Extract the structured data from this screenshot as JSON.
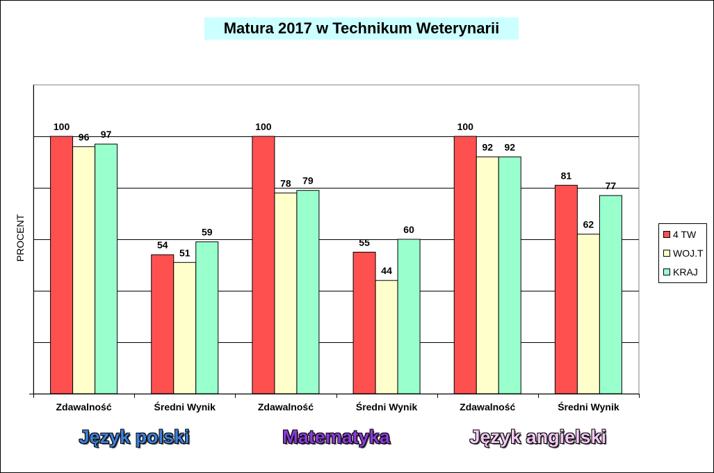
{
  "chart_data": {
    "type": "bar",
    "title": "Matura 2017 w Technikum Weterynarii",
    "ylabel": "PROCENT",
    "xlabel": "",
    "ylim": [
      0,
      120
    ],
    "ytick_step": 20,
    "grid": true,
    "legend_position": "right",
    "categories": [
      "Zdawalność",
      "Średni Wynik",
      "Zdawalność",
      "Średni Wynik",
      "Zdawalność",
      "Średni Wynik"
    ],
    "series": [
      {
        "name": "4 TW",
        "color": "#ff5050",
        "values": [
          100,
          54,
          100,
          55,
          100,
          81
        ]
      },
      {
        "name": "WOJ.T",
        "color": "#ffffcc",
        "values": [
          96,
          51,
          78,
          44,
          92,
          62
        ]
      },
      {
        "name": "KRAJ",
        "color": "#99ffcc",
        "values": [
          97,
          59,
          79,
          60,
          92,
          77
        ]
      }
    ],
    "groups": [
      {
        "label": "Język polski",
        "color": "#3d7fd6",
        "span": [
          0,
          1
        ]
      },
      {
        "label": "Matematyka",
        "color": "#8a3ad8",
        "span": [
          2,
          3
        ]
      },
      {
        "label": "Język angielski",
        "color": "#f4c8f4",
        "span": [
          4,
          5
        ]
      }
    ]
  }
}
